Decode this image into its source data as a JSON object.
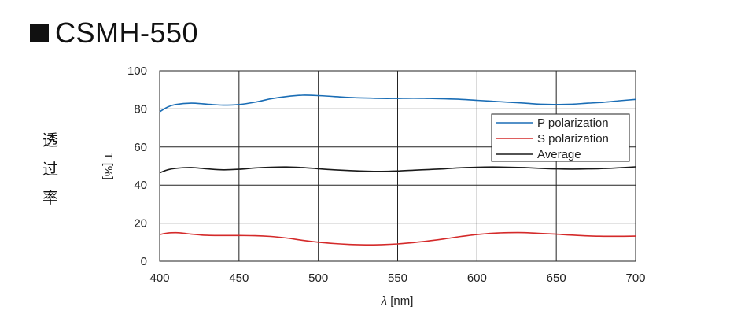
{
  "title": "CSMH-550",
  "side_label": [
    "透",
    "过",
    "率"
  ],
  "chart_data": {
    "type": "line",
    "xlabel_symbol": "λ",
    "xlabel_unit": "[nm]",
    "ylabel": "T [%]",
    "xlim": [
      400,
      700
    ],
    "ylim": [
      0,
      100
    ],
    "xticks": [
      400,
      450,
      500,
      550,
      600,
      650,
      700
    ],
    "yticks": [
      0,
      20,
      40,
      60,
      80,
      100
    ],
    "grid": true,
    "legend": "top-right",
    "series": [
      {
        "name": "P polarization",
        "color": "#1a6db5",
        "points": [
          [
            400,
            78.5
          ],
          [
            405,
            81
          ],
          [
            410,
            82.3
          ],
          [
            420,
            83
          ],
          [
            430,
            82.5
          ],
          [
            440,
            82
          ],
          [
            450,
            82.3
          ],
          [
            460,
            83.5
          ],
          [
            470,
            85.3
          ],
          [
            480,
            86.5
          ],
          [
            490,
            87.2
          ],
          [
            500,
            87
          ],
          [
            510,
            86.5
          ],
          [
            520,
            86
          ],
          [
            530,
            85.7
          ],
          [
            540,
            85.5
          ],
          [
            550,
            85.5
          ],
          [
            560,
            85.6
          ],
          [
            570,
            85.5
          ],
          [
            580,
            85.3
          ],
          [
            590,
            85
          ],
          [
            600,
            84.5
          ],
          [
            610,
            84
          ],
          [
            620,
            83.5
          ],
          [
            630,
            83
          ],
          [
            640,
            82.5
          ],
          [
            650,
            82.3
          ],
          [
            660,
            82.5
          ],
          [
            670,
            83
          ],
          [
            680,
            83.5
          ],
          [
            690,
            84.3
          ],
          [
            700,
            85
          ]
        ]
      },
      {
        "name": "S polarization",
        "color": "#d42a2a",
        "points": [
          [
            400,
            14
          ],
          [
            405,
            14.8
          ],
          [
            410,
            15
          ],
          [
            415,
            14.7
          ],
          [
            420,
            14.2
          ],
          [
            430,
            13.6
          ],
          [
            440,
            13.5
          ],
          [
            450,
            13.5
          ],
          [
            460,
            13.4
          ],
          [
            470,
            13
          ],
          [
            480,
            12.2
          ],
          [
            490,
            11
          ],
          [
            500,
            10
          ],
          [
            510,
            9.3
          ],
          [
            520,
            8.8
          ],
          [
            530,
            8.6
          ],
          [
            540,
            8.7
          ],
          [
            550,
            9.1
          ],
          [
            560,
            9.8
          ],
          [
            570,
            10.7
          ],
          [
            580,
            11.8
          ],
          [
            590,
            13
          ],
          [
            600,
            14
          ],
          [
            610,
            14.7
          ],
          [
            620,
            15
          ],
          [
            630,
            15
          ],
          [
            640,
            14.6
          ],
          [
            650,
            14.2
          ],
          [
            660,
            13.7
          ],
          [
            670,
            13.3
          ],
          [
            680,
            13.1
          ],
          [
            690,
            13.1
          ],
          [
            700,
            13.2
          ]
        ]
      },
      {
        "name": "Average",
        "color": "#1a1a1a",
        "points": [
          [
            400,
            46.5
          ],
          [
            405,
            48
          ],
          [
            410,
            48.8
          ],
          [
            420,
            49.2
          ],
          [
            430,
            48.5
          ],
          [
            440,
            48
          ],
          [
            450,
            48.3
          ],
          [
            460,
            49
          ],
          [
            470,
            49.4
          ],
          [
            480,
            49.5
          ],
          [
            490,
            49.2
          ],
          [
            500,
            48.6
          ],
          [
            510,
            48
          ],
          [
            520,
            47.6
          ],
          [
            530,
            47.3
          ],
          [
            540,
            47.2
          ],
          [
            550,
            47.4
          ],
          [
            560,
            47.8
          ],
          [
            570,
            48.2
          ],
          [
            580,
            48.6
          ],
          [
            590,
            49.1
          ],
          [
            600,
            49.4
          ],
          [
            610,
            49.5
          ],
          [
            620,
            49.4
          ],
          [
            630,
            49.2
          ],
          [
            640,
            48.8
          ],
          [
            650,
            48.5
          ],
          [
            660,
            48.4
          ],
          [
            670,
            48.5
          ],
          [
            680,
            48.7
          ],
          [
            690,
            49.1
          ],
          [
            700,
            49.6
          ]
        ]
      }
    ]
  }
}
